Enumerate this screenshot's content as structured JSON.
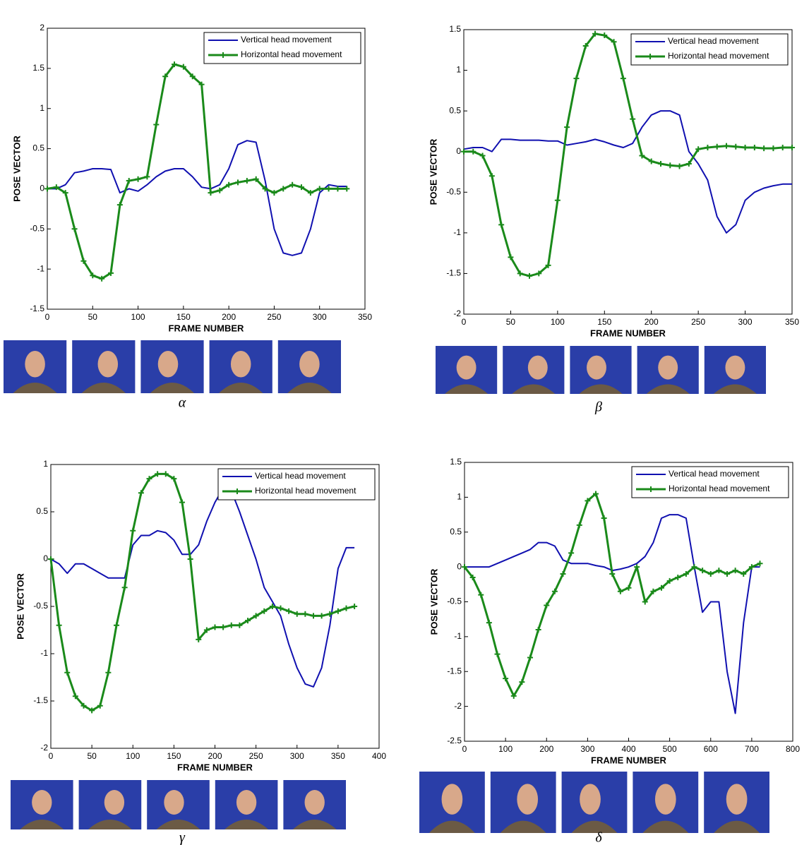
{
  "chart_data": [
    {
      "type": "line",
      "caption": "α",
      "x_label": "FRAME NUMBER",
      "y_label": "POSE VECTOR",
      "legend": "upper right",
      "x": [
        0,
        10,
        20,
        30,
        40,
        50,
        60,
        70,
        80,
        90,
        100,
        110,
        120,
        130,
        140,
        150,
        160,
        170,
        180,
        190,
        200,
        210,
        220,
        230,
        240,
        250,
        260,
        270,
        280,
        290,
        300,
        310,
        320,
        330
      ],
      "series": [
        {
          "name": "Vertical head movement",
          "color": "#1010b0",
          "marker": false,
          "values": [
            0,
            0,
            0.05,
            0.2,
            0.22,
            0.25,
            0.25,
            0.24,
            -0.05,
            0,
            -0.03,
            0.05,
            0.15,
            0.22,
            0.25,
            0.25,
            0.15,
            0.02,
            0,
            0.05,
            0.25,
            0.55,
            0.6,
            0.58,
            0.1,
            -0.5,
            -0.8,
            -0.83,
            -0.8,
            -0.5,
            -0.05,
            0.05,
            0.03,
            0.03
          ]
        },
        {
          "name": "Horizontal head movement",
          "color": "#1a8a1a",
          "marker": true,
          "values": [
            0,
            0.02,
            -0.05,
            -0.5,
            -0.9,
            -1.08,
            -1.12,
            -1.05,
            -0.2,
            0.1,
            0.12,
            0.15,
            0.8,
            1.4,
            1.55,
            1.52,
            1.4,
            1.3,
            -0.05,
            -0.02,
            0.05,
            0.08,
            0.1,
            0.12,
            0,
            -0.05,
            0,
            0.05,
            0.02,
            -0.05,
            0,
            0,
            0,
            0
          ]
        }
      ],
      "xlim": [
        0,
        350
      ],
      "ylim": [
        -1.5,
        2
      ],
      "xticks": [
        0,
        50,
        100,
        150,
        200,
        250,
        300,
        350
      ],
      "yticks": [
        -1.5,
        -1,
        -0.5,
        0,
        0.5,
        1,
        1.5,
        2
      ]
    },
    {
      "type": "line",
      "caption": "β",
      "x_label": "FRAME NUMBER",
      "y_label": "POSE VECTOR",
      "legend": "upper right",
      "x": [
        0,
        10,
        20,
        30,
        40,
        50,
        60,
        70,
        80,
        90,
        100,
        110,
        120,
        130,
        140,
        150,
        160,
        170,
        180,
        190,
        200,
        210,
        220,
        230,
        240,
        250,
        260,
        270,
        280,
        290,
        300,
        310,
        320,
        330,
        340,
        350
      ],
      "series": [
        {
          "name": "Vertical head movement",
          "color": "#1010b0",
          "marker": false,
          "values": [
            0.03,
            0.05,
            0.05,
            0,
            0.15,
            0.15,
            0.14,
            0.14,
            0.14,
            0.13,
            0.13,
            0.08,
            0.1,
            0.12,
            0.15,
            0.12,
            0.08,
            0.05,
            0.1,
            0.3,
            0.45,
            0.5,
            0.5,
            0.45,
            0,
            -0.15,
            -0.35,
            -0.8,
            -1,
            -0.9,
            -0.6,
            -0.5,
            -0.45,
            -0.42,
            -0.4,
            -0.4
          ]
        },
        {
          "name": "Horizontal head movement",
          "color": "#1a8a1a",
          "marker": true,
          "values": [
            0,
            0,
            -0.05,
            -0.3,
            -0.9,
            -1.3,
            -1.5,
            -1.53,
            -1.5,
            -1.4,
            -0.6,
            0.3,
            0.9,
            1.3,
            1.45,
            1.43,
            1.35,
            0.9,
            0.4,
            -0.05,
            -0.12,
            -0.15,
            -0.17,
            -0.18,
            -0.15,
            0.03,
            0.05,
            0.06,
            0.07,
            0.06,
            0.05,
            0.05,
            0.04,
            0.04,
            0.05,
            0.05
          ]
        }
      ],
      "xlim": [
        0,
        350
      ],
      "ylim": [
        -2,
        1.5
      ],
      "xticks": [
        0,
        50,
        100,
        150,
        200,
        250,
        300,
        350
      ],
      "yticks": [
        -2,
        -1.5,
        -1,
        -0.5,
        0,
        0.5,
        1,
        1.5
      ]
    },
    {
      "type": "line",
      "caption": "γ",
      "x_label": "FRAME NUMBER",
      "y_label": "POSE VECTOR",
      "legend": "upper right",
      "x": [
        0,
        10,
        20,
        30,
        40,
        50,
        60,
        70,
        80,
        90,
        100,
        110,
        120,
        130,
        140,
        150,
        160,
        170,
        180,
        190,
        200,
        210,
        220,
        230,
        240,
        250,
        260,
        270,
        280,
        290,
        300,
        310,
        320,
        330,
        340,
        350,
        360,
        370
      ],
      "series": [
        {
          "name": "Vertical head movement",
          "color": "#1010b0",
          "marker": false,
          "values": [
            0,
            -0.05,
            -0.15,
            -0.05,
            -0.05,
            -0.1,
            -0.15,
            -0.2,
            -0.2,
            -0.2,
            0.15,
            0.25,
            0.25,
            0.3,
            0.28,
            0.2,
            0.05,
            0.05,
            0.15,
            0.4,
            0.6,
            0.75,
            0.72,
            0.5,
            0.25,
            0,
            -0.3,
            -0.45,
            -0.6,
            -0.9,
            -1.15,
            -1.32,
            -1.35,
            -1.15,
            -0.7,
            -0.1,
            0.12,
            0.12
          ]
        },
        {
          "name": "Horizontal head movement",
          "color": "#1a8a1a",
          "marker": true,
          "values": [
            0,
            -0.7,
            -1.2,
            -1.45,
            -1.55,
            -1.6,
            -1.55,
            -1.2,
            -0.7,
            -0.3,
            0.3,
            0.7,
            0.85,
            0.9,
            0.9,
            0.85,
            0.6,
            0,
            -0.85,
            -0.75,
            -0.72,
            -0.72,
            -0.7,
            -0.7,
            -0.65,
            -0.6,
            -0.55,
            -0.5,
            -0.52,
            -0.55,
            -0.58,
            -0.58,
            -0.6,
            -0.6,
            -0.58,
            -0.55,
            -0.52,
            -0.5
          ]
        }
      ],
      "xlim": [
        0,
        400
      ],
      "ylim": [
        -2,
        1
      ],
      "xticks": [
        0,
        50,
        100,
        150,
        200,
        250,
        300,
        350,
        400
      ],
      "yticks": [
        -2,
        -1.5,
        -1,
        -0.5,
        0,
        0.5,
        1
      ]
    },
    {
      "type": "line",
      "caption": "δ",
      "x_label": "FRAME NUMBER",
      "y_label": "POSE VECTOR",
      "legend": "upper right",
      "x": [
        0,
        20,
        40,
        60,
        80,
        100,
        120,
        140,
        160,
        180,
        200,
        220,
        240,
        260,
        280,
        300,
        320,
        340,
        360,
        380,
        400,
        420,
        440,
        460,
        480,
        500,
        520,
        540,
        560,
        580,
        600,
        620,
        640,
        660,
        680,
        700,
        720
      ],
      "series": [
        {
          "name": "Vertical head movement",
          "color": "#1010b0",
          "marker": false,
          "values": [
            0,
            0,
            0,
            0,
            0.05,
            0.1,
            0.15,
            0.2,
            0.25,
            0.35,
            0.35,
            0.3,
            0.1,
            0.05,
            0.05,
            0.05,
            0.02,
            0,
            -0.05,
            -0.03,
            0,
            0.05,
            0.15,
            0.35,
            0.7,
            0.75,
            0.75,
            0.7,
            0,
            -0.65,
            -0.5,
            -0.5,
            -1.5,
            -2.1,
            -0.8,
            0,
            0
          ]
        },
        {
          "name": "Horizontal head movement",
          "color": "#1a8a1a",
          "marker": true,
          "values": [
            0,
            -0.15,
            -0.4,
            -0.8,
            -1.25,
            -1.6,
            -1.85,
            -1.65,
            -1.3,
            -0.9,
            -0.55,
            -0.35,
            -0.1,
            0.2,
            0.6,
            0.95,
            1.05,
            0.7,
            -0.1,
            -0.35,
            -0.3,
            0,
            -0.5,
            -0.35,
            -0.3,
            -0.2,
            -0.15,
            -0.1,
            0,
            -0.05,
            -0.1,
            -0.05,
            -0.1,
            -0.05,
            -0.1,
            0,
            0.05
          ]
        }
      ],
      "xlim": [
        0,
        800
      ],
      "ylim": [
        -2.5,
        1.5
      ],
      "xticks": [
        0,
        100,
        200,
        300,
        400,
        500,
        600,
        700,
        800
      ],
      "yticks": [
        -2.5,
        -2,
        -1.5,
        -1,
        -0.5,
        0,
        0.5,
        1,
        1.5
      ]
    }
  ]
}
